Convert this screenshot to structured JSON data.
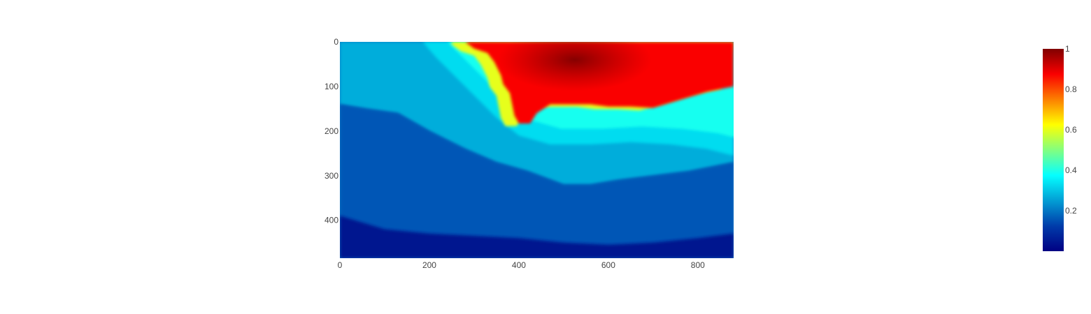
{
  "chart_data": {
    "type": "heatmap",
    "title": "",
    "xlabel": "",
    "ylabel": "",
    "x_range": [
      0,
      880
    ],
    "y_range": [
      0,
      485
    ],
    "y_reversed": true,
    "x_ticks": [
      "0",
      "200",
      "400",
      "600",
      "800"
    ],
    "y_ticks": [
      "0",
      "100",
      "200",
      "300",
      "400"
    ],
    "colorscale": {
      "name": "Jet",
      "stops": [
        [
          0.0,
          "#000083"
        ],
        [
          0.125,
          "#003caa"
        ],
        [
          0.375,
          "#05ffff"
        ],
        [
          0.625,
          "#ffff00"
        ],
        [
          0.875,
          "#fa0000"
        ],
        [
          1.0,
          "#800000"
        ]
      ]
    },
    "colorbar": {
      "range": [
        0,
        1
      ],
      "ticks": [
        "0.2",
        "0.4",
        "0.6",
        "0.8",
        "1"
      ]
    },
    "red_region_boundary": [
      [
        280,
        0
      ],
      [
        300,
        15
      ],
      [
        330,
        25
      ],
      [
        345,
        45
      ],
      [
        360,
        75
      ],
      [
        365,
        95
      ],
      [
        380,
        115
      ],
      [
        385,
        140
      ],
      [
        390,
        165
      ],
      [
        400,
        183
      ],
      [
        425,
        183
      ],
      [
        440,
        160
      ],
      [
        470,
        140
      ],
      [
        520,
        140
      ],
      [
        560,
        140
      ],
      [
        600,
        145
      ],
      [
        650,
        145
      ],
      [
        700,
        148
      ],
      [
        760,
        130
      ],
      [
        820,
        112
      ],
      [
        880,
        100
      ]
    ],
    "cyan_region_boundary": [
      [
        185,
        0
      ],
      [
        215,
        35
      ],
      [
        250,
        70
      ],
      [
        300,
        120
      ],
      [
        350,
        170
      ],
      [
        400,
        210
      ],
      [
        470,
        230
      ],
      [
        560,
        230
      ],
      [
        650,
        225
      ],
      [
        740,
        230
      ],
      [
        820,
        240
      ],
      [
        880,
        255
      ]
    ],
    "medium_region_boundary": [
      [
        0,
        140
      ],
      [
        60,
        150
      ],
      [
        130,
        160
      ],
      [
        200,
        200
      ],
      [
        280,
        240
      ],
      [
        350,
        270
      ],
      [
        420,
        290
      ],
      [
        500,
        320
      ],
      [
        560,
        320
      ],
      [
        620,
        310
      ],
      [
        700,
        300
      ],
      [
        780,
        290
      ],
      [
        880,
        270
      ]
    ],
    "dark_region_boundary": [
      [
        0,
        390
      ],
      [
        100,
        420
      ],
      [
        200,
        430
      ],
      [
        300,
        435
      ],
      [
        400,
        440
      ],
      [
        500,
        450
      ],
      [
        600,
        455
      ],
      [
        700,
        450
      ],
      [
        800,
        440
      ],
      [
        880,
        430
      ]
    ],
    "hotspot": [
      525,
      40
    ]
  }
}
